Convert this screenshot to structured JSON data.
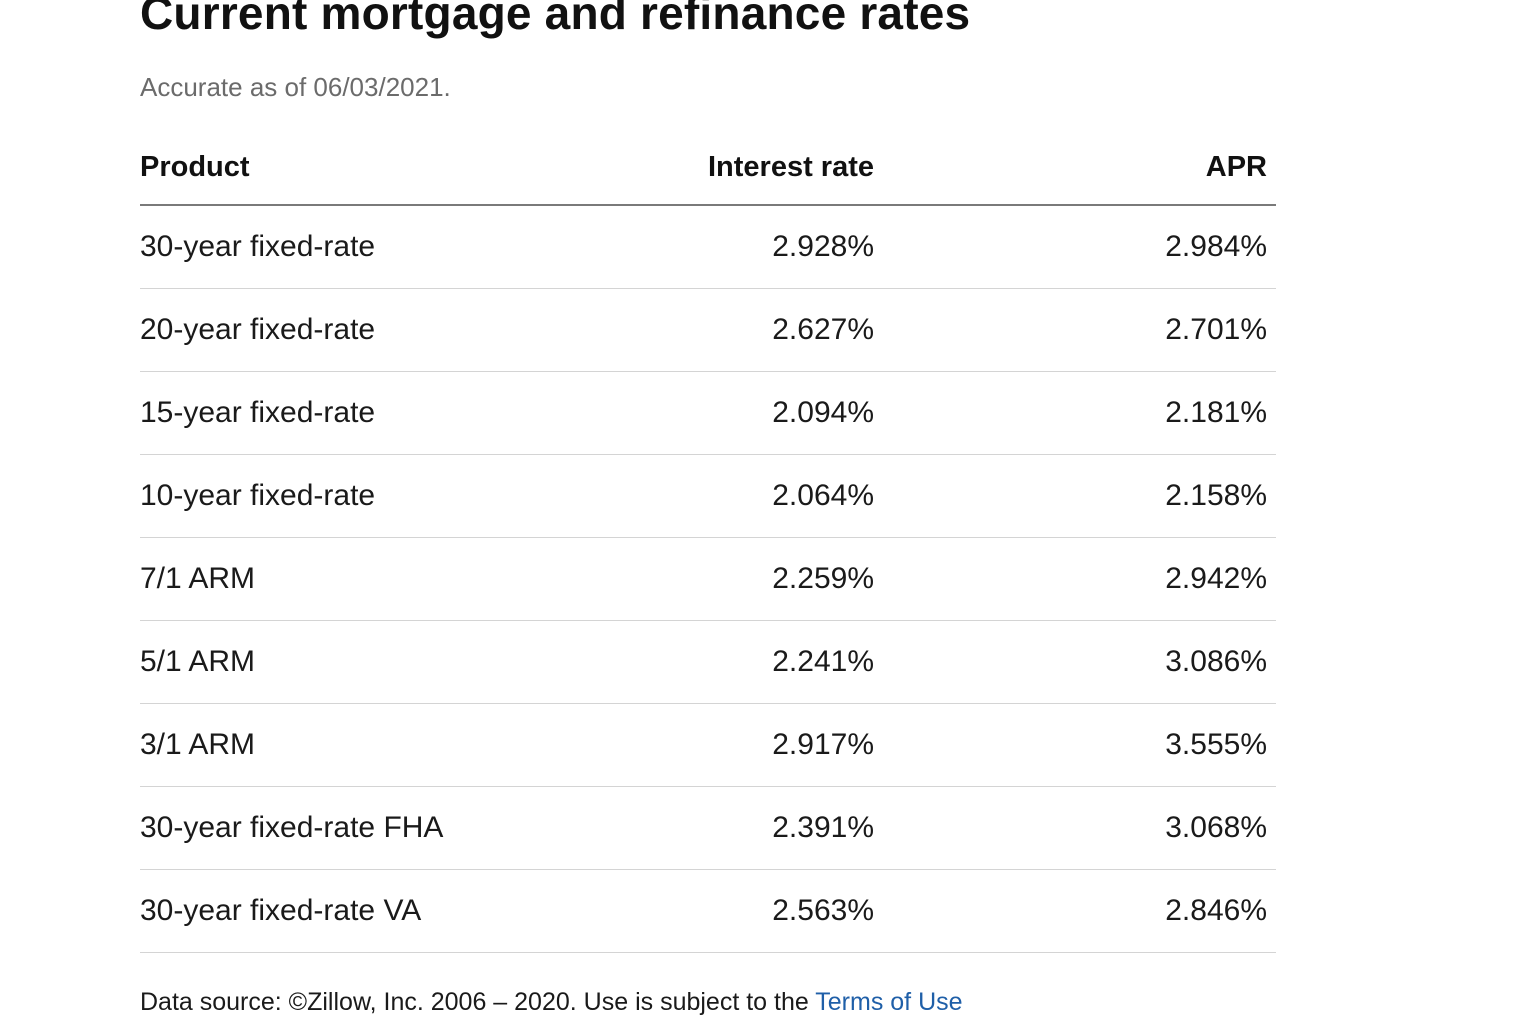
{
  "header": {
    "title": "Current mortgage and refinance rates",
    "subtitle": "Accurate as of 06/03/2021."
  },
  "table": {
    "columns": {
      "product": "Product",
      "interest_rate": "Interest rate",
      "apr": "APR"
    },
    "rows": [
      {
        "product": "30-year fixed-rate",
        "interest_rate": "2.928%",
        "apr": "2.984%"
      },
      {
        "product": "20-year fixed-rate",
        "interest_rate": "2.627%",
        "apr": "2.701%"
      },
      {
        "product": "15-year fixed-rate",
        "interest_rate": "2.094%",
        "apr": "2.181%"
      },
      {
        "product": "10-year fixed-rate",
        "interest_rate": "2.064%",
        "apr": "2.158%"
      },
      {
        "product": "7/1 ARM",
        "interest_rate": "2.259%",
        "apr": "2.942%"
      },
      {
        "product": "5/1 ARM",
        "interest_rate": "2.241%",
        "apr": "3.086%"
      },
      {
        "product": "3/1 ARM",
        "interest_rate": "2.917%",
        "apr": "3.555%"
      },
      {
        "product": "30-year fixed-rate FHA",
        "interest_rate": "2.391%",
        "apr": "3.068%"
      },
      {
        "product": "30-year fixed-rate VA",
        "interest_rate": "2.563%",
        "apr": "2.846%"
      }
    ]
  },
  "footer": {
    "source_text": "Data source: ©Zillow, Inc. 2006 – 2020. Use is subject to the ",
    "terms_link": "Terms of Use"
  },
  "colors": {
    "link": "#1f5fa8",
    "subtitle": "#6b6b6b",
    "header_rule": "#7a7a7a",
    "row_rule": "#d4d4d4"
  }
}
